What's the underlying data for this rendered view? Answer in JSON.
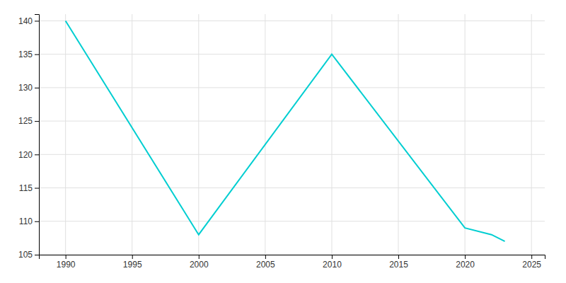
{
  "chart_data": {
    "type": "line",
    "x": [
      1990,
      2000,
      2010,
      2020,
      2022,
      2023
    ],
    "values": [
      140,
      108,
      135,
      109,
      108,
      107
    ],
    "color": "#00CED1",
    "xlim": [
      1988,
      2026
    ],
    "ylim": [
      105,
      141
    ],
    "xticks": [
      1990,
      1995,
      2000,
      2005,
      2010,
      2015,
      2020,
      2025
    ],
    "yticks": [
      105,
      110,
      115,
      120,
      125,
      130,
      135,
      140
    ],
    "grid": true
  }
}
